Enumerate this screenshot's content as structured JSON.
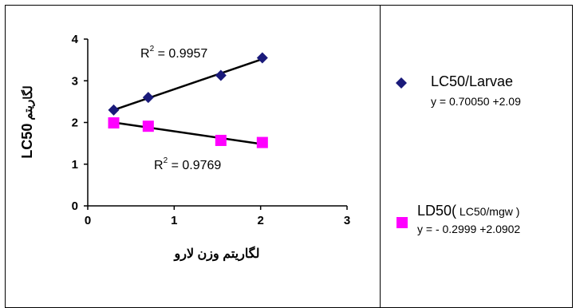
{
  "chart_data": {
    "type": "scatter",
    "x_ticks": [
      "0",
      "1",
      "2",
      "3"
    ],
    "y_ticks": [
      "0",
      "1",
      "2",
      "3",
      "4"
    ],
    "xlim": [
      0,
      3
    ],
    "ylim": [
      0,
      4
    ],
    "ylabel_main": "LC50",
    "ylabel_sub": "لگاریتم",
    "xlabel": "لگاریتم وزن لارو",
    "grid": false,
    "legend_position": "right",
    "series": [
      {
        "name": "LC50/Larvae",
        "equation": "y = 0.70050 +2.09",
        "r2_label": "R",
        "r2_value": " = 0.9957",
        "marker": "diamond",
        "color": "#1a1a7a",
        "x": [
          0.3,
          0.7,
          1.54,
          2.02
        ],
        "y": [
          2.3,
          2.6,
          3.13,
          3.55
        ],
        "trend": [
          [
            0.3,
            2.3
          ],
          [
            2.02,
            3.52
          ]
        ]
      },
      {
        "name_main": "LD50(",
        "name_sub": " LC50/mgw )",
        "equation": "y = - 0.2999 +2.0902",
        "r2_label": "R",
        "r2_value": " = 0.9769",
        "marker": "square",
        "color": "#ff00ff",
        "x": [
          0.3,
          0.7,
          1.54,
          2.02
        ],
        "y": [
          1.99,
          1.91,
          1.57,
          1.52
        ],
        "trend": [
          [
            0.3,
            2.0
          ],
          [
            2.02,
            1.48
          ]
        ]
      }
    ]
  }
}
